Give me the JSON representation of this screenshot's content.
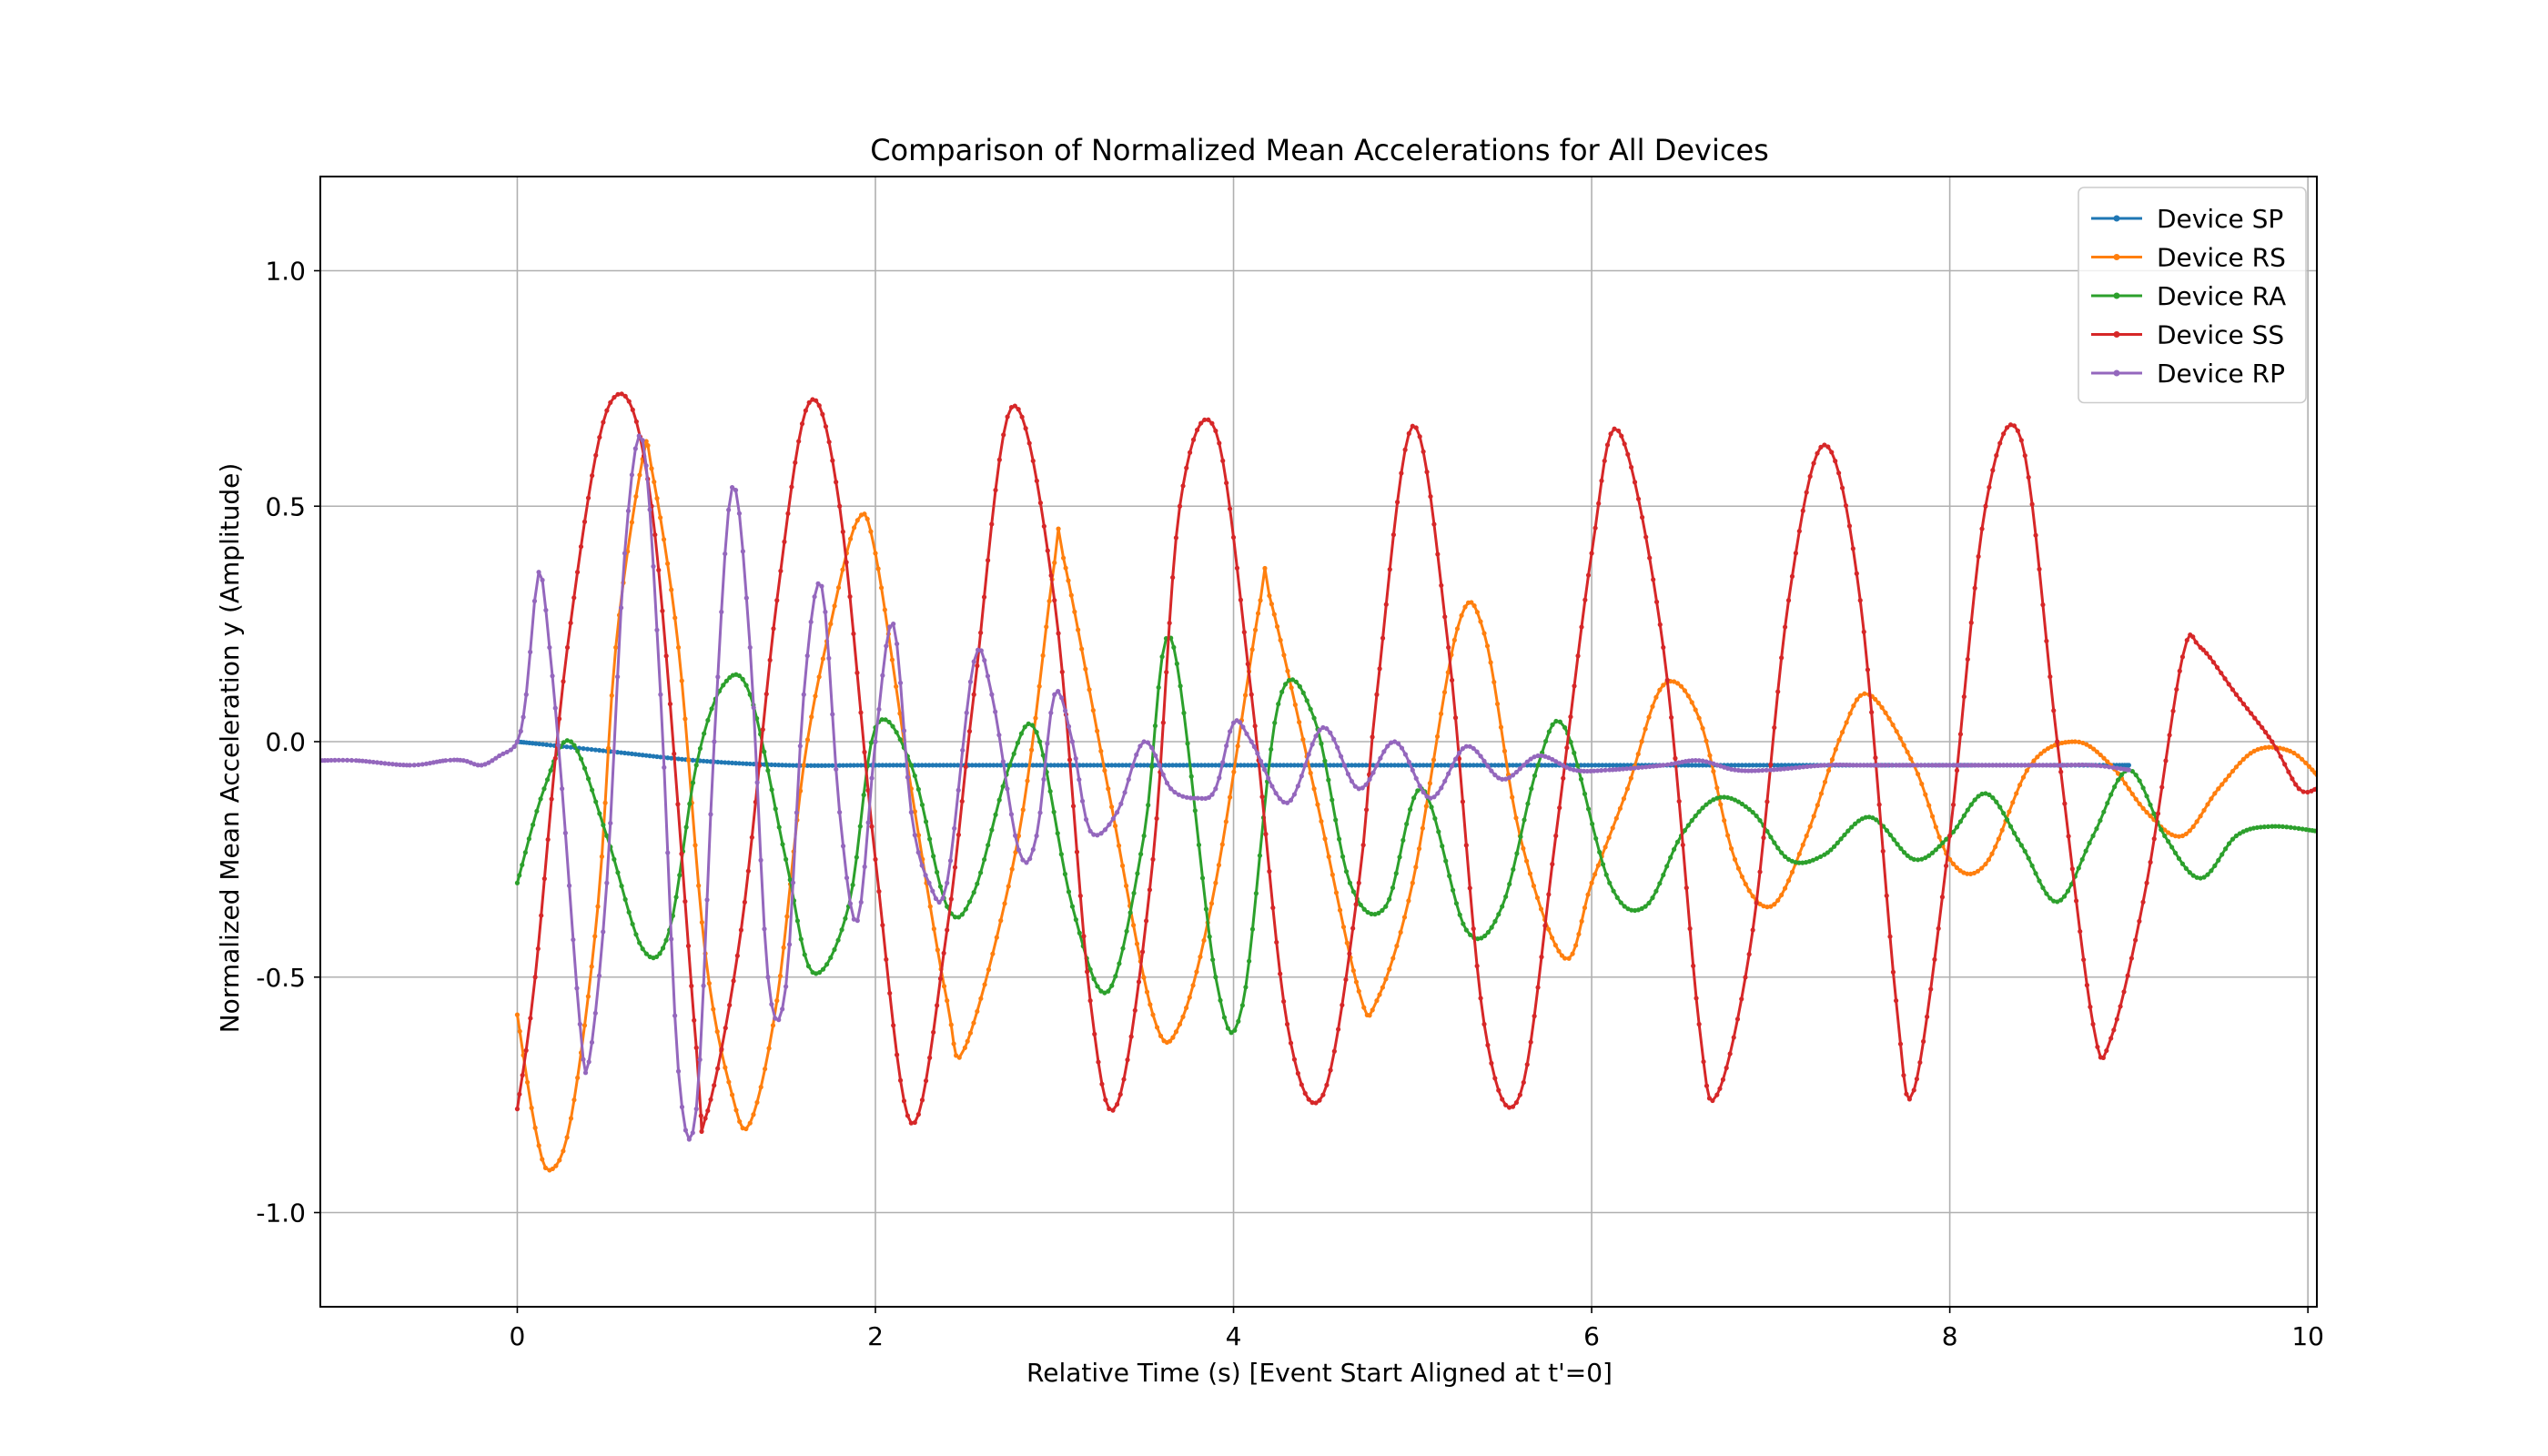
{
  "chart_data": {
    "type": "line",
    "title": "Comparison of Normalized Mean Accelerations for All Devices",
    "xlabel": "Relative Time (s) [Event Start Aligned at t'=0]",
    "ylabel": "Normalized Mean Acceleration y (Amplitude)",
    "xlim": [
      -1.1,
      10.05
    ],
    "ylim": [
      -1.2,
      1.2
    ],
    "xticks": [
      0,
      2,
      4,
      6,
      8,
      10
    ],
    "xtick_labels": [
      "0",
      "2",
      "4",
      "6",
      "8",
      "10"
    ],
    "yticks": [
      -1.0,
      -0.5,
      0.0,
      0.5,
      1.0
    ],
    "ytick_labels": [
      "-1.0",
      "-0.5",
      "0.0",
      "0.5",
      "1.0"
    ],
    "grid": true,
    "legend_position": "top-right",
    "series": [
      {
        "name": "Device SP",
        "color": "#1f77b4",
        "x": [
          0.0,
          0.5,
          1.0,
          1.5,
          2.0,
          2.5,
          3.0,
          3.5,
          4.0,
          4.5,
          5.0,
          5.5,
          6.0,
          6.5,
          7.0,
          7.5,
          8.0,
          8.5,
          9.0
        ],
        "y": [
          0.0,
          -0.02,
          -0.04,
          -0.05,
          -0.05,
          -0.05,
          -0.05,
          -0.05,
          -0.05,
          -0.05,
          -0.05,
          -0.05,
          -0.05,
          -0.05,
          -0.05,
          -0.05,
          -0.05,
          -0.05,
          -0.05
        ]
      },
      {
        "name": "Device RS",
        "color": "#ff7f0e",
        "x": [
          0.0,
          0.1,
          0.18,
          0.3,
          0.45,
          0.55,
          0.7,
          0.75,
          0.9,
          1.05,
          1.2,
          1.3,
          1.45,
          1.6,
          1.75,
          1.9,
          2.0,
          2.2,
          2.4,
          2.5,
          2.8,
          3.0,
          3.05,
          3.3,
          3.55,
          3.7,
          3.9,
          4.15,
          4.2,
          4.45,
          4.7,
          4.8,
          5.0,
          5.25,
          5.4,
          5.6,
          5.85,
          6.0,
          6.2,
          6.4,
          6.6,
          6.8,
          7.0,
          7.2,
          7.4,
          7.55,
          7.8,
          8.0,
          8.2,
          8.45,
          8.7,
          8.9,
          9.1,
          9.3,
          9.5,
          9.7,
          9.9,
          10.05
        ],
        "y": [
          -0.58,
          -0.82,
          -0.91,
          -0.8,
          -0.35,
          0.2,
          0.6,
          0.58,
          0.2,
          -0.45,
          -0.75,
          -0.81,
          -0.55,
          -0.05,
          0.25,
          0.47,
          0.4,
          -0.1,
          -0.55,
          -0.65,
          -0.2,
          0.38,
          0.39,
          -0.1,
          -0.58,
          -0.6,
          -0.3,
          0.3,
          0.31,
          -0.1,
          -0.53,
          -0.55,
          -0.3,
          0.24,
          0.23,
          -0.2,
          -0.46,
          -0.3,
          -0.1,
          0.12,
          0.05,
          -0.25,
          -0.35,
          -0.2,
          0.02,
          0.1,
          -0.05,
          -0.25,
          -0.26,
          -0.05,
          0.0,
          -0.05,
          -0.15,
          -0.2,
          -0.1,
          -0.02,
          -0.02,
          -0.07
        ]
      },
      {
        "name": "Device RA",
        "color": "#2ca02c",
        "x": [
          0.0,
          0.15,
          0.3,
          0.5,
          0.7,
          0.85,
          1.0,
          1.15,
          1.3,
          1.5,
          1.65,
          1.85,
          2.0,
          2.2,
          2.4,
          2.55,
          2.75,
          2.9,
          3.1,
          3.3,
          3.5,
          3.65,
          3.9,
          4.05,
          4.25,
          4.45,
          4.65,
          4.85,
          5.05,
          5.3,
          5.5,
          5.7,
          5.85,
          6.1,
          6.3,
          6.5,
          6.7,
          6.9,
          7.1,
          7.3,
          7.55,
          7.8,
          8.0,
          8.2,
          8.4,
          8.6,
          8.8,
          9.0,
          9.2,
          9.4,
          9.6,
          9.8,
          10.05
        ],
        "y": [
          -0.3,
          -0.1,
          0.0,
          -0.2,
          -0.44,
          -0.4,
          -0.05,
          0.12,
          0.1,
          -0.25,
          -0.49,
          -0.35,
          0.03,
          -0.05,
          -0.35,
          -0.32,
          -0.05,
          0.02,
          -0.35,
          -0.53,
          -0.2,
          0.22,
          -0.5,
          -0.56,
          0.08,
          0.05,
          -0.3,
          -0.35,
          -0.1,
          -0.4,
          -0.35,
          -0.05,
          0.03,
          -0.3,
          -0.35,
          -0.2,
          -0.12,
          -0.15,
          -0.25,
          -0.24,
          -0.16,
          -0.25,
          -0.2,
          -0.11,
          -0.22,
          -0.34,
          -0.2,
          -0.06,
          -0.2,
          -0.29,
          -0.2,
          -0.18,
          -0.19
        ]
      },
      {
        "name": "Device SS",
        "color": "#d62728",
        "x": [
          0.0,
          0.1,
          0.28,
          0.52,
          0.75,
          1.0,
          1.05,
          1.25,
          1.45,
          1.63,
          1.8,
          2.0,
          2.2,
          2.4,
          2.55,
          2.76,
          3.0,
          3.2,
          3.35,
          3.55,
          3.7,
          3.9,
          4.1,
          4.3,
          4.5,
          4.7,
          4.8,
          5.0,
          5.2,
          5.4,
          5.6,
          5.8,
          6.0,
          6.15,
          6.4,
          6.6,
          6.7,
          6.9,
          7.1,
          7.3,
          7.5,
          7.7,
          7.8,
          8.0,
          8.2,
          8.4,
          8.6,
          8.8,
          8.9,
          9.1,
          9.3,
          9.4,
          9.6,
          9.8,
          9.95,
          10.05
        ],
        "y": [
          -0.78,
          -0.5,
          0.2,
          0.72,
          0.5,
          -0.65,
          -0.8,
          -0.4,
          0.3,
          0.72,
          0.5,
          -0.25,
          -0.81,
          -0.4,
          0.1,
          0.71,
          0.3,
          -0.55,
          -0.77,
          -0.25,
          0.5,
          0.66,
          0.1,
          -0.6,
          -0.75,
          -0.3,
          0.1,
          0.67,
          0.2,
          -0.6,
          -0.75,
          -0.2,
          0.4,
          0.66,
          0.2,
          -0.6,
          -0.75,
          -0.4,
          0.3,
          0.63,
          0.3,
          -0.55,
          -0.74,
          -0.2,
          0.5,
          0.64,
          0.0,
          -0.6,
          -0.63,
          -0.3,
          0.18,
          0.2,
          0.1,
          0.0,
          -0.1,
          -0.1
        ]
      },
      {
        "name": "Device RP",
        "color": "#9467bd",
        "x": [
          -1.1,
          -0.9,
          -0.6,
          -0.4,
          -0.3,
          -0.2,
          -0.1,
          0.0,
          0.05,
          0.12,
          0.18,
          0.25,
          0.35,
          0.4,
          0.5,
          0.6,
          0.7,
          0.8,
          0.9,
          1.0,
          1.1,
          1.2,
          1.3,
          1.4,
          1.5,
          1.6,
          1.7,
          1.8,
          1.9,
          2.0,
          2.1,
          2.2,
          2.3,
          2.4,
          2.55,
          2.65,
          2.8,
          2.9,
          3.0,
          3.1,
          3.2,
          3.35,
          3.5,
          3.65,
          3.8,
          3.9,
          4.0,
          4.1,
          4.3,
          4.5,
          4.7,
          4.9,
          5.1,
          5.3,
          5.5,
          5.7,
          5.9,
          6.1,
          6.4,
          6.6,
          6.8,
          7.0,
          7.3,
          7.5,
          7.7,
          8.0,
          8.2,
          8.4,
          8.6,
          8.8,
          9.0
        ],
        "y": [
          -0.04,
          -0.04,
          -0.05,
          -0.04,
          -0.04,
          -0.05,
          -0.03,
          0.0,
          0.1,
          0.36,
          0.2,
          -0.1,
          -0.6,
          -0.68,
          -0.3,
          0.4,
          0.64,
          0.1,
          -0.7,
          -0.78,
          0.0,
          0.54,
          0.2,
          -0.5,
          -0.52,
          0.1,
          0.33,
          -0.15,
          -0.38,
          0.0,
          0.25,
          -0.15,
          -0.3,
          -0.3,
          0.17,
          0.1,
          -0.23,
          -0.2,
          0.1,
          0.0,
          -0.19,
          -0.15,
          0.0,
          -0.1,
          -0.12,
          -0.1,
          0.04,
          0.0,
          -0.13,
          0.03,
          -0.1,
          0.0,
          -0.12,
          -0.01,
          -0.08,
          -0.03,
          -0.06,
          -0.06,
          -0.05,
          -0.04,
          -0.06,
          -0.06,
          -0.05,
          -0.05,
          -0.05,
          -0.05,
          -0.05,
          -0.05,
          -0.05,
          -0.05,
          -0.06
        ]
      }
    ]
  }
}
